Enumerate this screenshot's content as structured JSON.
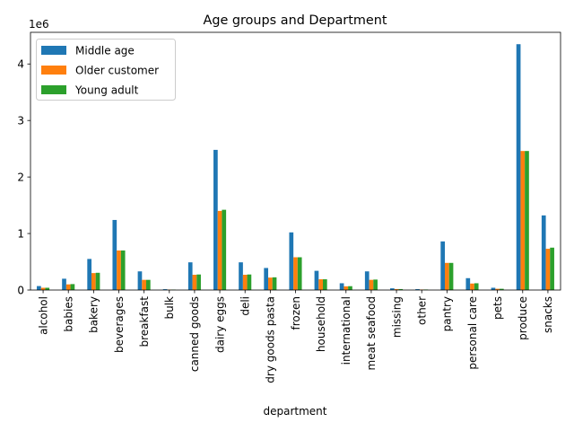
{
  "chart_data": {
    "type": "bar",
    "title": "Age groups and Department",
    "xlabel": "department",
    "ylabel": "",
    "offset_text": "1e6",
    "ylim": [
      0,
      4560000
    ],
    "yticks": [
      0,
      1000000,
      2000000,
      3000000,
      4000000
    ],
    "ytick_labels": [
      "0",
      "1",
      "2",
      "3",
      "4"
    ],
    "legend_position": "upper-left",
    "categories": [
      "alcohol",
      "babies",
      "bakery",
      "beverages",
      "breakfast",
      "bulk",
      "canned goods",
      "dairy eggs",
      "deli",
      "dry goods pasta",
      "frozen",
      "household",
      "international",
      "meat seafood",
      "missing",
      "other",
      "pantry",
      "personal care",
      "pets",
      "produce",
      "snacks"
    ],
    "series": [
      {
        "name": "Middle age",
        "color": "#1f77b4",
        "values": [
          70000,
          200000,
          550000,
          1240000,
          330000,
          15000,
          490000,
          2480000,
          490000,
          390000,
          1020000,
          340000,
          120000,
          330000,
          30000,
          16000,
          860000,
          210000,
          40000,
          4350000,
          1320000
        ]
      },
      {
        "name": "Older customer",
        "color": "#ff7f0e",
        "values": [
          40000,
          100000,
          300000,
          700000,
          180000,
          8000,
          270000,
          1400000,
          270000,
          220000,
          580000,
          190000,
          65000,
          180000,
          17000,
          9000,
          480000,
          115000,
          22000,
          2460000,
          730000
        ]
      },
      {
        "name": "Young adult",
        "color": "#2ca02c",
        "values": [
          40000,
          105000,
          305000,
          700000,
          180000,
          8000,
          275000,
          1420000,
          275000,
          225000,
          580000,
          190000,
          68000,
          185000,
          17000,
          9000,
          480000,
          120000,
          22000,
          2460000,
          750000
        ]
      }
    ]
  }
}
